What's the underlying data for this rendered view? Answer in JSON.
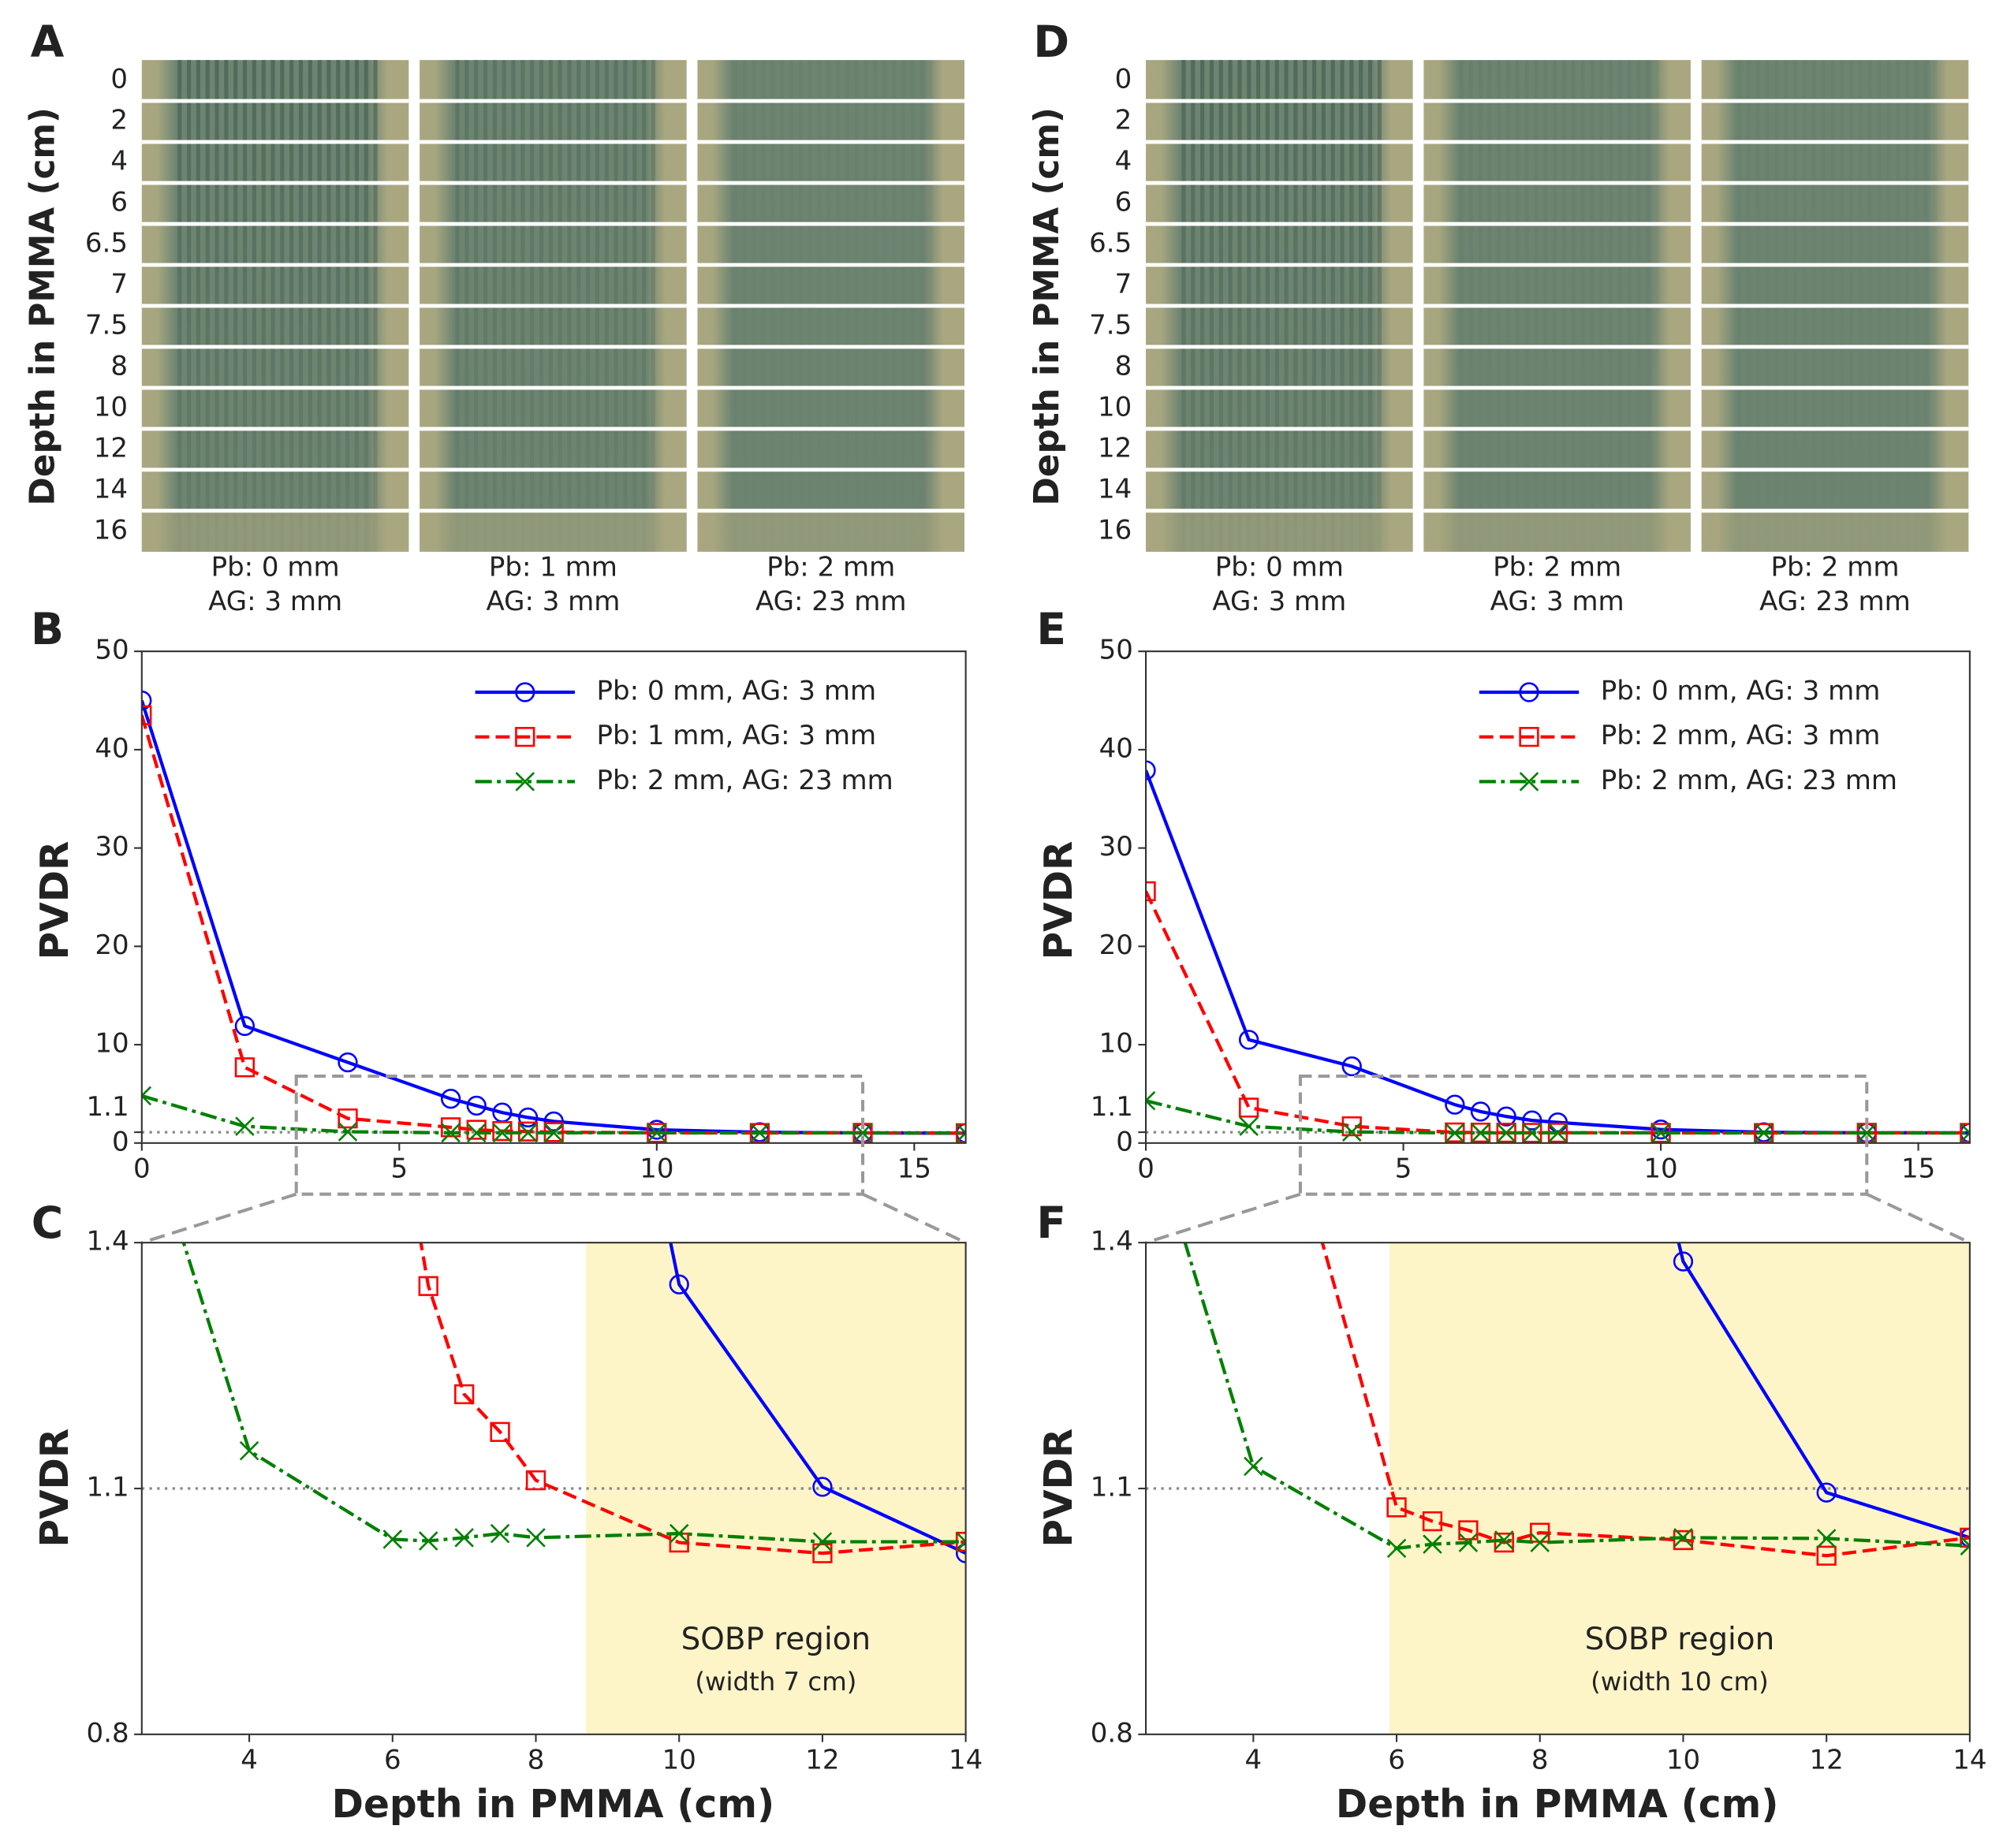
{
  "chart_data": [
    {
      "type": "film",
      "panel_label": "A",
      "ylabel": "Depth in PMMA (cm)",
      "categories": [
        "0",
        "2",
        "4",
        "6",
        "6.5",
        "7",
        "7.5",
        "8",
        "10",
        "12",
        "14",
        "16"
      ],
      "columns": [
        [
          "Pb: 0 mm",
          "AG: 3 mm"
        ],
        [
          "Pb: 1 mm",
          "AG: 3 mm"
        ],
        [
          "Pb: 2 mm",
          "AG: 23 mm"
        ]
      ]
    },
    {
      "type": "line",
      "panel_label": "B",
      "ylabel": "PVDR",
      "x": [
        0,
        2,
        4,
        6,
        6.5,
        7,
        7.5,
        8,
        10,
        12,
        14,
        16
      ],
      "xlim": [
        0,
        16
      ],
      "xticks": [
        0,
        5,
        10,
        15
      ],
      "ylim": [
        0,
        50
      ],
      "yticks": [
        0,
        1.1,
        10,
        20,
        30,
        40,
        50
      ],
      "hline": 1.1,
      "legend": "upper right",
      "zoom_box": {
        "x": [
          3,
          14
        ],
        "y": [
          -5.2,
          6.8
        ]
      },
      "series": [
        {
          "name": "Pb: 0 mm, AG: 3 mm",
          "color": "#0000ff",
          "marker": "circle",
          "linestyle": "solid",
          "values": [
            45,
            11.9,
            8.2,
            4.5,
            3.8,
            3.1,
            2.6,
            2.2,
            1.349,
            1.102,
            1.021,
            1.0
          ]
        },
        {
          "name": "Pb: 1 mm, AG: 3 mm",
          "color": "#ff0000",
          "marker": "square",
          "linestyle": "dashed",
          "values": [
            43.5,
            7.7,
            2.5,
            1.6,
            1.347,
            1.215,
            1.169,
            1.11,
            1.034,
            1.021,
            1.035,
            1.0
          ]
        },
        {
          "name": "Pb: 2 mm, AG: 23 mm",
          "color": "#008000",
          "marker": "x",
          "linestyle": "dashdot",
          "values": [
            4.8,
            1.7,
            1.146,
            1.038,
            1.036,
            1.04,
            1.045,
            1.04,
            1.045,
            1.035,
            1.035,
            1.03
          ]
        }
      ],
      "zoom": {
        "panel_label": "C",
        "ylabel": "PVDR",
        "xlabel": "Depth in PMMA (cm)",
        "xlim": [
          2.5,
          14
        ],
        "xticks": [
          4,
          6,
          8,
          10,
          12,
          14
        ],
        "ylim": [
          0.8,
          1.4
        ],
        "yticks": [
          0.8,
          1.1,
          1.4
        ],
        "shade": [
          8.7,
          14
        ],
        "annotation": [
          "SOBP region",
          "(width 7 cm)"
        ]
      }
    },
    {
      "type": "film",
      "panel_label": "D",
      "ylabel": "Depth in PMMA (cm)",
      "categories": [
        "0",
        "2",
        "4",
        "6",
        "6.5",
        "7",
        "7.5",
        "8",
        "10",
        "12",
        "14",
        "16"
      ],
      "columns": [
        [
          "Pb: 0 mm",
          "AG: 3 mm"
        ],
        [
          "Pb: 2 mm",
          "AG: 3 mm"
        ],
        [
          "Pb: 2 mm",
          "AG: 23 mm"
        ]
      ]
    },
    {
      "type": "line",
      "panel_label": "E",
      "ylabel": "PVDR",
      "x": [
        0,
        2,
        4,
        6,
        6.5,
        7,
        7.5,
        8,
        10,
        12,
        14,
        16
      ],
      "xlim": [
        0,
        16
      ],
      "xticks": [
        0,
        5,
        10,
        15
      ],
      "ylim": [
        0,
        50
      ],
      "yticks": [
        0,
        1.1,
        10,
        20,
        30,
        40,
        50
      ],
      "hline": 1.1,
      "legend": "upper right",
      "zoom_box": {
        "x": [
          3,
          14
        ],
        "y": [
          -5.2,
          6.8
        ]
      },
      "series": [
        {
          "name": "Pb: 0 mm, AG: 3 mm",
          "color": "#0000ff",
          "marker": "circle",
          "linestyle": "solid",
          "values": [
            37.9,
            10.5,
            7.8,
            3.9,
            3.2,
            2.7,
            2.3,
            2.1,
            1.377,
            1.095,
            1.04,
            1.03
          ]
        },
        {
          "name": "Pb: 2 mm, AG: 3 mm",
          "color": "#ff0000",
          "marker": "square",
          "linestyle": "dashed",
          "values": [
            25.6,
            3.6,
            1.7,
            1.077,
            1.06,
            1.049,
            1.034,
            1.046,
            1.037,
            1.018,
            1.04,
            1.03
          ]
        },
        {
          "name": "Pb: 2 mm, AG: 23 mm",
          "color": "#008000",
          "marker": "x",
          "linestyle": "dashdot",
          "values": [
            4.3,
            1.7,
            1.127,
            1.027,
            1.032,
            1.034,
            1.037,
            1.034,
            1.04,
            1.039,
            1.03,
            1.03
          ]
        }
      ],
      "zoom": {
        "panel_label": "F",
        "ylabel": "PVDR",
        "xlabel": "Depth in PMMA (cm)",
        "xlim": [
          2.5,
          14
        ],
        "xticks": [
          4,
          6,
          8,
          10,
          12,
          14
        ],
        "ylim": [
          0.8,
          1.4
        ],
        "yticks": [
          0.8,
          1.1,
          1.4
        ],
        "shade": [
          5.9,
          14
        ],
        "annotation": [
          "SOBP region",
          "(width 10 cm)"
        ]
      }
    }
  ]
}
